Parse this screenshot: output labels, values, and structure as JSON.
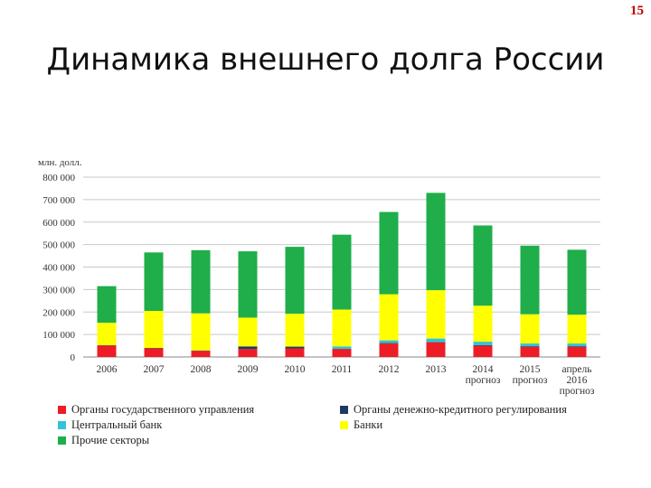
{
  "page_number": "15",
  "slide_title": "Динамика внешнего долга России",
  "chart_data": {
    "type": "bar",
    "stacked": true,
    "title": "",
    "ylabel": "млн. долл.",
    "xlabel": "",
    "ylim": [
      0,
      800000
    ],
    "yticks": [
      "0",
      "100 000",
      "200 000",
      "300 000",
      "400 000",
      "500 000",
      "600 000",
      "700 000",
      "800 000"
    ],
    "ytick_values": [
      0,
      100000,
      200000,
      300000,
      400000,
      500000,
      600000,
      700000,
      800000
    ],
    "categories": [
      [
        "2006"
      ],
      [
        "2007"
      ],
      [
        "2008"
      ],
      [
        "2009"
      ],
      [
        "2010"
      ],
      [
        "2011"
      ],
      [
        "2012"
      ],
      [
        "2013"
      ],
      [
        "2014",
        "прогноз"
      ],
      [
        "2015",
        "прогноз"
      ],
      [
        "апрель",
        "2016",
        "прогноз"
      ]
    ],
    "series": [
      {
        "name": "Органы государственного управления",
        "color": "#ee1c25",
        "values": [
          50000,
          38000,
          27000,
          35000,
          38000,
          35000,
          60000,
          65000,
          50000,
          45000,
          45000
        ]
      },
      {
        "name": "Органы денежно-кредитного регулирования",
        "color": "#1f3864",
        "values": [
          2000,
          2000,
          2000,
          12000,
          8000,
          2000,
          2000,
          2000,
          3000,
          3000,
          3000
        ]
      },
      {
        "name": "Центральный банк",
        "color": "#31c3d6",
        "values": [
          0,
          0,
          0,
          0,
          0,
          10000,
          12000,
          15000,
          15000,
          12000,
          12000
        ]
      },
      {
        "name": "Банки",
        "color": "#ffff00",
        "values": [
          100000,
          165000,
          165000,
          128000,
          146000,
          164000,
          205000,
          215000,
          160000,
          130000,
          128000
        ]
      },
      {
        "name": "Прочие секторы",
        "color": "#1fae4a",
        "values": [
          163000,
          260000,
          281000,
          295000,
          298000,
          333000,
          366000,
          433000,
          357000,
          305000,
          289000
        ]
      }
    ],
    "legend": {
      "position": "bottom",
      "entries": [
        "Органы государственного управления",
        "Органы денежно-кредитного регулирования",
        "Центральный банк",
        "Банки",
        "Прочие секторы"
      ]
    },
    "grid": true
  }
}
